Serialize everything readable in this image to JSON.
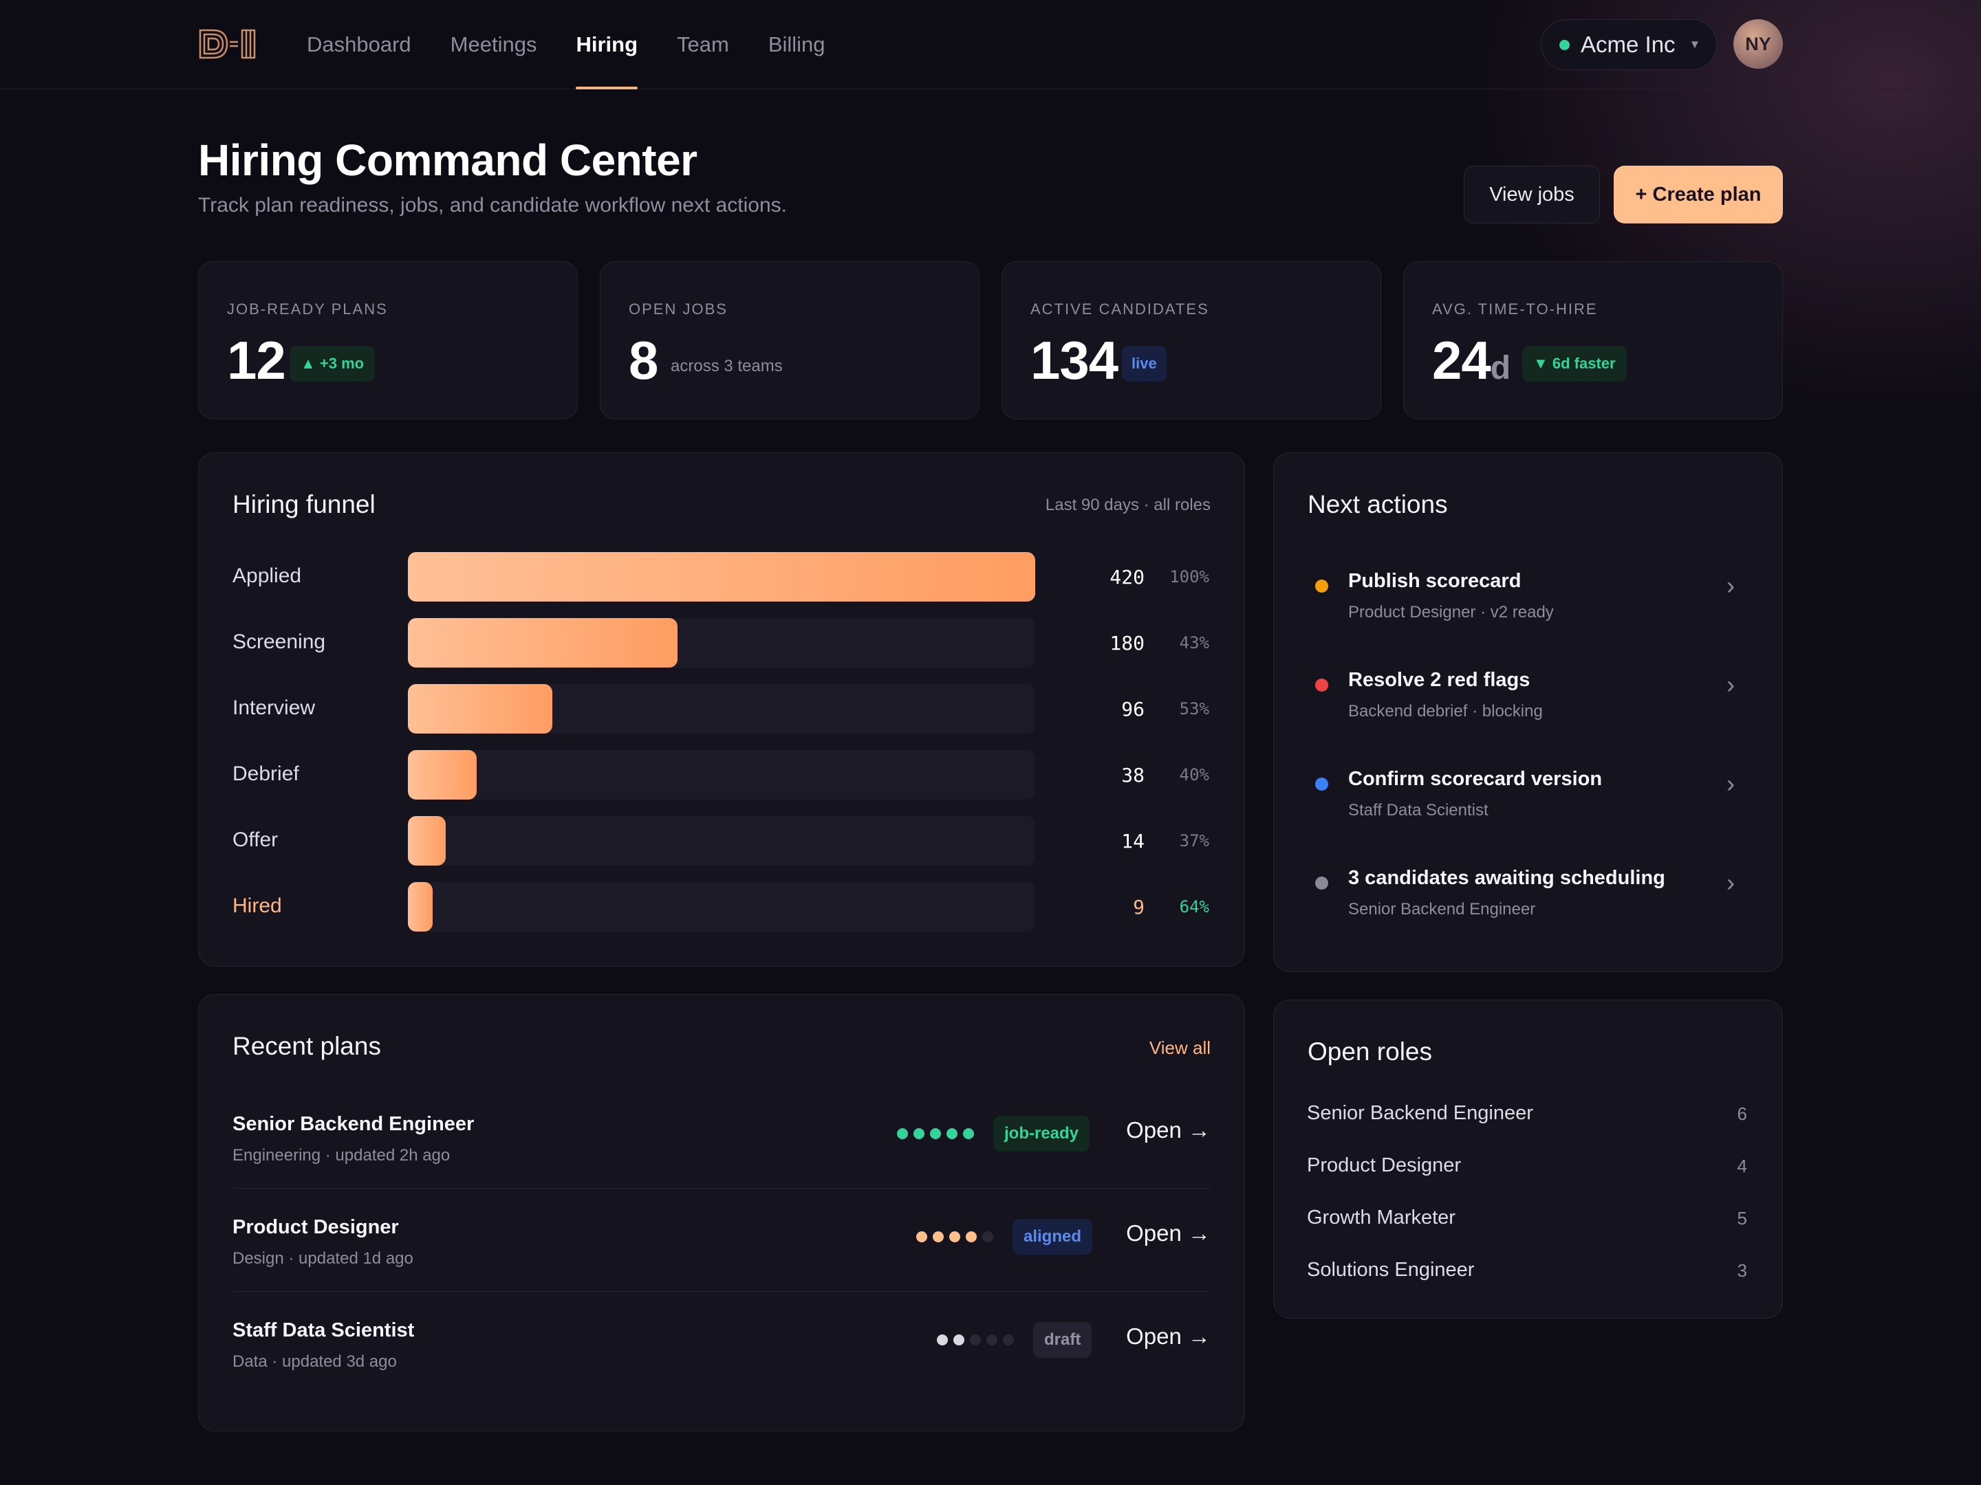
{
  "brand": {
    "logo": "D-1",
    "accent": "#ffbf8c"
  },
  "nav": {
    "items": [
      {
        "label": "Dashboard"
      },
      {
        "label": "Meetings"
      },
      {
        "label": "Hiring"
      },
      {
        "label": "Team"
      },
      {
        "label": "Billing"
      }
    ],
    "active": "Hiring"
  },
  "org": {
    "name": "Acme Inc",
    "status_color": "#34d399"
  },
  "user": {
    "initials": "NY"
  },
  "header": {
    "title": "Hiring Command Center",
    "subtitle": "Track plan readiness, jobs, and candidate workflow next actions.",
    "view_jobs": "View jobs",
    "create_plan": "+ Create plan"
  },
  "stats": [
    {
      "label": "JOB-READY PLANS",
      "value": "12",
      "unit": "",
      "badge": "▲ +3 mo",
      "badge_style": "green"
    },
    {
      "label": "OPEN JOBS",
      "value": "8",
      "unit": "",
      "note": "across 3 teams"
    },
    {
      "label": "ACTIVE CANDIDATES",
      "value": "134",
      "unit": "",
      "badge": "live",
      "badge_style": "blue"
    },
    {
      "label": "AVG. TIME-TO-HIRE",
      "value": "24",
      "unit": "d",
      "badge": "▼ 6d faster",
      "badge_style": "green"
    }
  ],
  "funnel": {
    "title": "Hiring funnel",
    "meta": "Last 90 days · all roles",
    "stages": [
      {
        "label": "Applied",
        "count": "420",
        "pct": "100%",
        "share": 1.0
      },
      {
        "label": "Screening",
        "count": "180",
        "pct": "43%",
        "share": 0.43
      },
      {
        "label": "Interview",
        "count": "96",
        "pct": "53%",
        "share": 0.23
      },
      {
        "label": "Debrief",
        "count": "38",
        "pct": "40%",
        "share": 0.11
      },
      {
        "label": "Offer",
        "count": "14",
        "pct": "37%",
        "share": 0.06
      },
      {
        "label": "Hired",
        "count": "9",
        "pct": "64%",
        "share": 0.04
      }
    ]
  },
  "next_actions": {
    "title": "Next actions",
    "items": [
      {
        "title": "Publish scorecard",
        "sub": "Product Designer · v2 ready",
        "color": "#f59e0b"
      },
      {
        "title": "Resolve 2 red flags",
        "sub": "Backend debrief · blocking",
        "color": "#ef4444"
      },
      {
        "title": "Confirm scorecard version",
        "sub": "Staff Data Scientist",
        "color": "#3b82f6"
      },
      {
        "title": "3 candidates awaiting scheduling",
        "sub": "Senior Backend Engineer",
        "color": "#8b8898"
      }
    ],
    "chevron": "›"
  },
  "recent_plans": {
    "title": "Recent plans",
    "view_all": "View all",
    "items": [
      {
        "title": "Senior Backend Engineer",
        "sub": "Engineering · updated 2h ago",
        "status": "job-ready",
        "style": "green",
        "progress": 5,
        "of": 5,
        "dot_color": "#34d399",
        "open": "Open →"
      },
      {
        "title": "Product Designer",
        "sub": "Design · updated 1d ago",
        "status": "aligned",
        "style": "blue",
        "progress": 4,
        "of": 5,
        "dot_color": "#ffbf8c",
        "open": "Open →"
      },
      {
        "title": "Staff Data Scientist",
        "sub": "Data · updated 3d ago",
        "status": "draft",
        "style": "gray",
        "progress": 2,
        "of": 5,
        "dot_color": "#d9d7e0",
        "open": "Open →"
      }
    ]
  },
  "open_roles": {
    "title": "Open roles",
    "items": [
      {
        "name": "Senior Backend Engineer",
        "count": "6"
      },
      {
        "name": "Product Designer",
        "count": "4"
      },
      {
        "name": "Growth Marketer",
        "count": "5"
      },
      {
        "name": "Solutions Engineer",
        "count": "3"
      }
    ]
  }
}
